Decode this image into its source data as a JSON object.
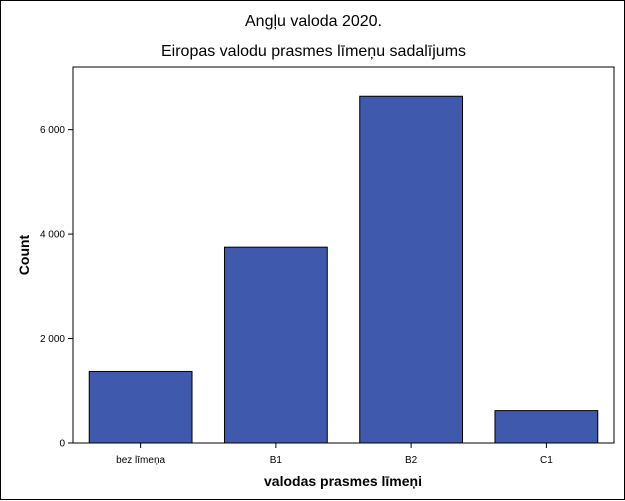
{
  "chart_data": {
    "type": "bar",
    "title": "Angļu valoda 2020.",
    "subtitle": "Eiropas valodu prasmes līmeņu sadalījums",
    "xlabel": "valodas prasmes līmeņi",
    "ylabel": "Count",
    "categories": [
      "bez līmeņa",
      "B1",
      "B2",
      "C1"
    ],
    "values": [
      1370,
      3750,
      6640,
      620
    ],
    "ylim": [
      0,
      7200
    ],
    "yticks": [
      0,
      2000,
      4000,
      6000
    ],
    "ytick_labels": [
      "0",
      "2 000",
      "4 000",
      "6 000"
    ],
    "bar_color": "#3f59ad",
    "grid": false,
    "legend": "none"
  }
}
